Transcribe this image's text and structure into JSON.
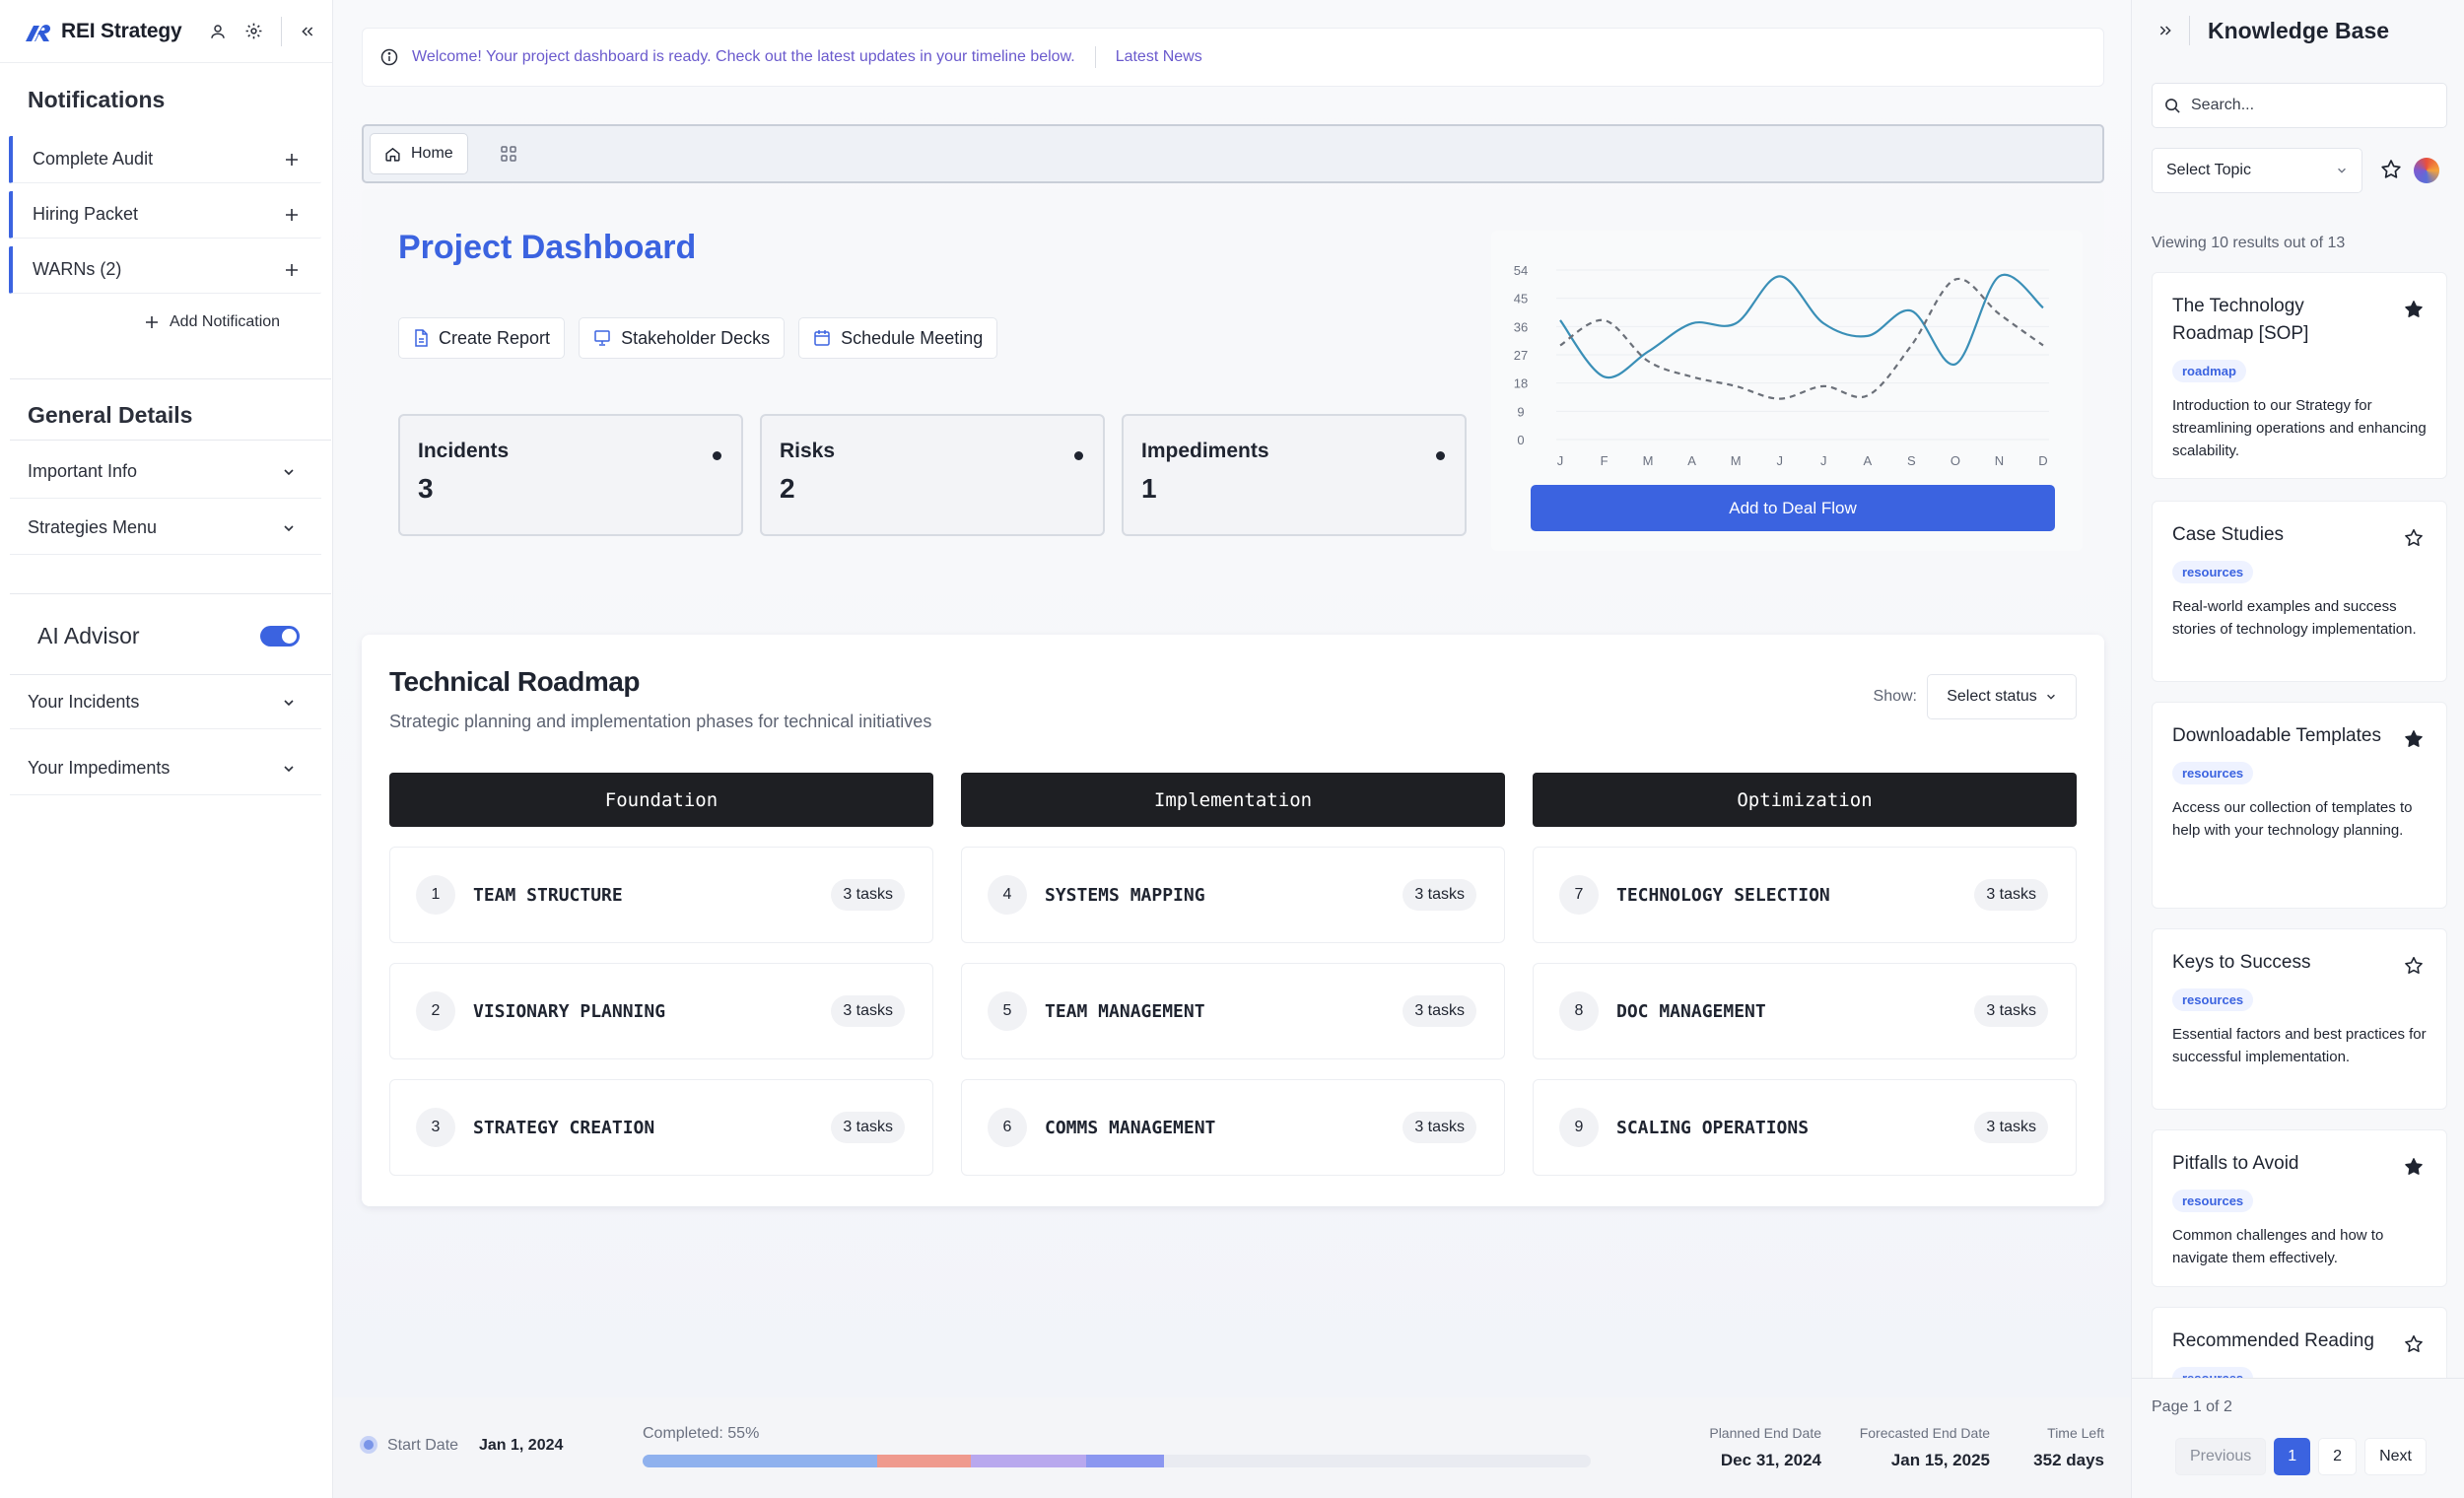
{
  "app": {
    "name": "REI Strategy"
  },
  "sidebar": {
    "notifications_heading": "Notifications",
    "notifications": [
      {
        "label": "Complete Audit"
      },
      {
        "label": "Hiring Packet"
      },
      {
        "label": "WARNs (2)"
      }
    ],
    "add_notification": "Add Notification",
    "general_heading": "General Details",
    "general_items": [
      {
        "label": "Important Info"
      },
      {
        "label": "Strategies Menu"
      }
    ],
    "ai_advisor": {
      "label": "AI Advisor",
      "enabled": true
    },
    "ai_items": [
      {
        "label": "Your Incidents"
      },
      {
        "label": "Your Impediments"
      }
    ]
  },
  "banner": {
    "message": "Welcome! Your project dashboard is ready. Check out the latest updates in your timeline below.",
    "link": "Latest News"
  },
  "tabs": {
    "home": "Home"
  },
  "dashboard": {
    "title": "Project Dashboard",
    "actions": [
      {
        "label": "Create Report",
        "icon": "document-icon"
      },
      {
        "label": "Stakeholder Decks",
        "icon": "presentation-icon"
      },
      {
        "label": "Schedule Meeting",
        "icon": "calendar-icon"
      }
    ],
    "stats": [
      {
        "label": "Incidents",
        "value": "3"
      },
      {
        "label": "Risks",
        "value": "2"
      },
      {
        "label": "Impediments",
        "value": "1"
      }
    ],
    "deal_flow_button": "Add to Deal Flow"
  },
  "chart_data": {
    "type": "line",
    "categories": [
      "J",
      "F",
      "M",
      "A",
      "M",
      "J",
      "J",
      "A",
      "S",
      "O",
      "N",
      "D"
    ],
    "y_ticks": [
      0,
      9,
      18,
      27,
      36,
      45,
      54
    ],
    "ylim": [
      0,
      54
    ],
    "grid": true,
    "series": [
      {
        "style": "solid",
        "color": "#3a8fb7",
        "values": [
          38,
          20,
          28,
          37,
          37,
          52,
          37,
          33,
          41,
          24,
          52,
          42
        ]
      },
      {
        "style": "dashed",
        "color": "#6b7079",
        "values": [
          30,
          38,
          25,
          20,
          17,
          13,
          17,
          14,
          30,
          51,
          40,
          30
        ]
      }
    ]
  },
  "roadmap": {
    "title": "Technical Roadmap",
    "subtitle": "Strategic planning and implementation phases for technical initiatives",
    "show_label": "Show:",
    "status_select": "Select status",
    "phases": [
      {
        "name": "Foundation",
        "tasks": [
          {
            "num": "1",
            "name": "TEAM STRUCTURE",
            "count": "3 tasks"
          },
          {
            "num": "2",
            "name": "VISIONARY PLANNING",
            "count": "3 tasks"
          },
          {
            "num": "3",
            "name": "STRATEGY CREATION",
            "count": "3 tasks"
          }
        ]
      },
      {
        "name": "Implementation",
        "tasks": [
          {
            "num": "4",
            "name": "SYSTEMS MAPPING",
            "count": "3 tasks"
          },
          {
            "num": "5",
            "name": "TEAM MANAGEMENT",
            "count": "3 tasks"
          },
          {
            "num": "6",
            "name": "COMMS MANAGEMENT",
            "count": "3 tasks"
          }
        ]
      },
      {
        "name": "Optimization",
        "tasks": [
          {
            "num": "7",
            "name": "TECHNOLOGY SELECTION",
            "count": "3 tasks"
          },
          {
            "num": "8",
            "name": "DOC MANAGEMENT",
            "count": "3 tasks"
          },
          {
            "num": "9",
            "name": "SCALING OPERATIONS",
            "count": "3 tasks"
          }
        ]
      }
    ]
  },
  "footer": {
    "start_label": "Start Date",
    "start_value": "Jan 1, 2024",
    "completed_label": "Completed: 55%",
    "completed_percent": 55,
    "progress_colors": [
      "#8fb1ee",
      "#ef9a8e",
      "#b8a8ee",
      "#8b97f0"
    ],
    "planned_end_label": "Planned End Date",
    "planned_end_value": "Dec 31, 2024",
    "forecast_end_label": "Forecasted End Date",
    "forecast_end_value": "Jan 15, 2025",
    "time_left_label": "Time Left",
    "time_left_value": "352 days"
  },
  "knowledge_base": {
    "title": "Knowledge Base",
    "search_placeholder": "Search...",
    "topic_select": "Select Topic",
    "results_text": "Viewing 10 results out of 13",
    "items": [
      {
        "title": "The Technology Roadmap [SOP]",
        "tag": "roadmap",
        "desc": "Introduction to our Strategy for streamlining operations and enhancing scalability.",
        "starred": true
      },
      {
        "title": "Case Studies",
        "tag": "resources",
        "desc": "Real-world examples and success stories of technology implementation.",
        "starred": false
      },
      {
        "title": "Downloadable Templates",
        "tag": "resources",
        "desc": "Access our collection of templates to help with your technology planning.",
        "starred": true
      },
      {
        "title": "Keys to Success",
        "tag": "resources",
        "desc": "Essential factors and best practices for successful implementation.",
        "starred": false
      },
      {
        "title": "Pitfalls to Avoid",
        "tag": "resources",
        "desc": "Common challenges and how to navigate them effectively.",
        "starred": true
      },
      {
        "title": "Recommended Reading",
        "tag": "resources",
        "desc": "",
        "starred": false
      }
    ],
    "page_text": "Page 1 of 2",
    "pagination": {
      "previous": "Previous",
      "pages": [
        "1",
        "2"
      ],
      "next": "Next"
    }
  }
}
